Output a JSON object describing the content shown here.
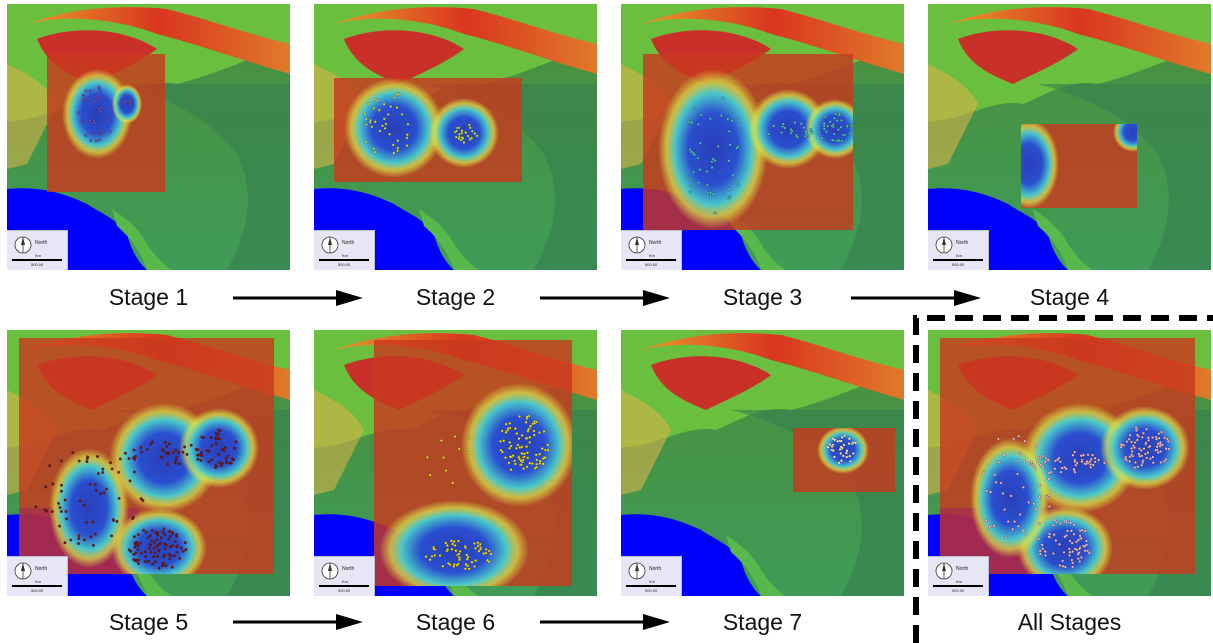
{
  "panels": [
    {
      "caption": "Stage 1",
      "marker_color": "#6f4fc4"
    },
    {
      "caption": "Stage 2",
      "marker_color": "#c8e04a"
    },
    {
      "caption": "Stage 3",
      "marker_color": "#46c6c0"
    },
    {
      "caption": "Stage 4",
      "marker_color": "#2a58c9"
    },
    {
      "caption": "Stage 5",
      "marker_color": "#7a1414"
    },
    {
      "caption": "Stage 6",
      "marker_color": "#f2e21a"
    },
    {
      "caption": "Stage 7",
      "marker_color": "#f4f0c8"
    },
    {
      "caption": "All Stages",
      "marker_color": "#f3b9c9"
    }
  ],
  "legend": {
    "north_label": "North",
    "unit_label": "Km",
    "scale_label": "500.00"
  },
  "colors": {
    "sea": "#0000ff",
    "lowland": "#3f9b57",
    "highland": "#e8452a",
    "overlay": "#c8391f",
    "hotspot": "#2a3fb8"
  }
}
